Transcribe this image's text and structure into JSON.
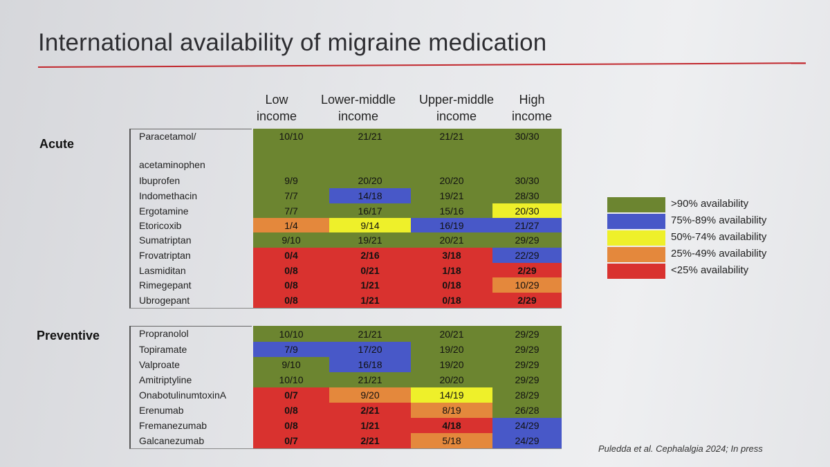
{
  "title": "International availability of migraine medication",
  "columns": [
    {
      "line1": "Low",
      "line2": "income"
    },
    {
      "line1": "Lower-middle",
      "line2": "income"
    },
    {
      "line1": "Upper-middle",
      "line2": "income"
    },
    {
      "line1": "High",
      "line2": "income"
    }
  ],
  "colors": {
    "green": "#6c8530",
    "blue": "#4858c8",
    "yellow": "#eef02a",
    "orange": "#e4883c",
    "red": "#d9322f"
  },
  "legend": [
    {
      "color": "green",
      "label": ">90% availability"
    },
    {
      "color": "blue",
      "label": "75%-89% availability"
    },
    {
      "color": "yellow",
      "label": "50%-74% availability"
    },
    {
      "color": "orange",
      "label": "25%-49% availability"
    },
    {
      "color": "red",
      "label": "<25% availability"
    }
  ],
  "sections": [
    {
      "label": "Acute",
      "rows": [
        {
          "drug": "Paracetamol/",
          "drug2": "acetaminophen",
          "cells": [
            {
              "v": "10/10",
              "c": "green"
            },
            {
              "v": "21/21",
              "c": "green"
            },
            {
              "v": "21/21",
              "c": "green"
            },
            {
              "v": "30/30",
              "c": "green"
            }
          ]
        },
        {
          "drug": "Ibuprofen",
          "cells": [
            {
              "v": "9/9",
              "c": "green"
            },
            {
              "v": "20/20",
              "c": "green"
            },
            {
              "v": "20/20",
              "c": "green"
            },
            {
              "v": "30/30",
              "c": "green"
            }
          ]
        },
        {
          "drug": "Indomethacin",
          "cells": [
            {
              "v": "7/7",
              "c": "green"
            },
            {
              "v": "14/18",
              "c": "blue"
            },
            {
              "v": "19/21",
              "c": "green"
            },
            {
              "v": "28/30",
              "c": "green"
            }
          ]
        },
        {
          "drug": "Ergotamine",
          "cells": [
            {
              "v": "7/7",
              "c": "green"
            },
            {
              "v": "16/17",
              "c": "green"
            },
            {
              "v": "15/16",
              "c": "green"
            },
            {
              "v": "20/30",
              "c": "yellow"
            }
          ]
        },
        {
          "drug": "Etoricoxib",
          "cells": [
            {
              "v": "1/4",
              "c": "orange"
            },
            {
              "v": "9/14",
              "c": "yellow"
            },
            {
              "v": "16/19",
              "c": "blue"
            },
            {
              "v": "21/27",
              "c": "blue"
            }
          ]
        },
        {
          "drug": "Sumatriptan",
          "cells": [
            {
              "v": "9/10",
              "c": "green"
            },
            {
              "v": "19/21",
              "c": "green"
            },
            {
              "v": "20/21",
              "c": "green"
            },
            {
              "v": "29/29",
              "c": "green"
            }
          ]
        },
        {
          "drug": "Frovatriptan",
          "cells": [
            {
              "v": "0/4",
              "c": "red"
            },
            {
              "v": "2/16",
              "c": "red"
            },
            {
              "v": "3/18",
              "c": "red"
            },
            {
              "v": "22/29",
              "c": "blue"
            }
          ]
        },
        {
          "drug": "Lasmiditan",
          "cells": [
            {
              "v": "0/8",
              "c": "red"
            },
            {
              "v": "0/21",
              "c": "red"
            },
            {
              "v": "1/18",
              "c": "red"
            },
            {
              "v": "2/29",
              "c": "red"
            }
          ]
        },
        {
          "drug": "Rimegepant",
          "cells": [
            {
              "v": "0/8",
              "c": "red"
            },
            {
              "v": "1/21",
              "c": "red"
            },
            {
              "v": "0/18",
              "c": "red"
            },
            {
              "v": "10/29",
              "c": "orange"
            }
          ]
        },
        {
          "drug": "Ubrogepant",
          "cells": [
            {
              "v": "0/8",
              "c": "red"
            },
            {
              "v": "1/21",
              "c": "red"
            },
            {
              "v": "0/18",
              "c": "red"
            },
            {
              "v": "2/29",
              "c": "red"
            }
          ]
        }
      ]
    },
    {
      "label": "Preventive",
      "rows": [
        {
          "drug": "Propranolol",
          "cells": [
            {
              "v": "10/10",
              "c": "green"
            },
            {
              "v": "21/21",
              "c": "green"
            },
            {
              "v": "20/21",
              "c": "green"
            },
            {
              "v": "29/29",
              "c": "green"
            }
          ]
        },
        {
          "drug": "Topiramate",
          "cells": [
            {
              "v": "7/9",
              "c": "blue"
            },
            {
              "v": "17/20",
              "c": "blue"
            },
            {
              "v": "19/20",
              "c": "green"
            },
            {
              "v": "29/29",
              "c": "green"
            }
          ]
        },
        {
          "drug": "Valproate",
          "cells": [
            {
              "v": "9/10",
              "c": "green"
            },
            {
              "v": "16/18",
              "c": "blue"
            },
            {
              "v": "19/20",
              "c": "green"
            },
            {
              "v": "29/29",
              "c": "green"
            }
          ]
        },
        {
          "drug": "Amitriptyline",
          "cells": [
            {
              "v": "10/10",
              "c": "green"
            },
            {
              "v": "21/21",
              "c": "green"
            },
            {
              "v": "20/20",
              "c": "green"
            },
            {
              "v": "29/29",
              "c": "green"
            }
          ]
        },
        {
          "drug": "OnabotulinumtoxinA",
          "cells": [
            {
              "v": "0/7",
              "c": "red"
            },
            {
              "v": "9/20",
              "c": "orange"
            },
            {
              "v": "14/19",
              "c": "yellow"
            },
            {
              "v": "28/29",
              "c": "green"
            }
          ]
        },
        {
          "drug": "Erenumab",
          "cells": [
            {
              "v": "0/8",
              "c": "red"
            },
            {
              "v": "2/21",
              "c": "red"
            },
            {
              "v": "8/19",
              "c": "orange"
            },
            {
              "v": "26/28",
              "c": "green"
            }
          ]
        },
        {
          "drug": "Fremanezumab",
          "cells": [
            {
              "v": "0/8",
              "c": "red"
            },
            {
              "v": "1/21",
              "c": "red"
            },
            {
              "v": "4/18",
              "c": "red"
            },
            {
              "v": "24/29",
              "c": "blue"
            }
          ]
        },
        {
          "drug": "Galcanezumab",
          "cells": [
            {
              "v": "0/7",
              "c": "red"
            },
            {
              "v": "2/21",
              "c": "red"
            },
            {
              "v": "5/18",
              "c": "orange"
            },
            {
              "v": "24/29",
              "c": "blue"
            }
          ]
        }
      ]
    }
  ],
  "citation": "Puledda et al. Cephalalgia 2024; In press"
}
